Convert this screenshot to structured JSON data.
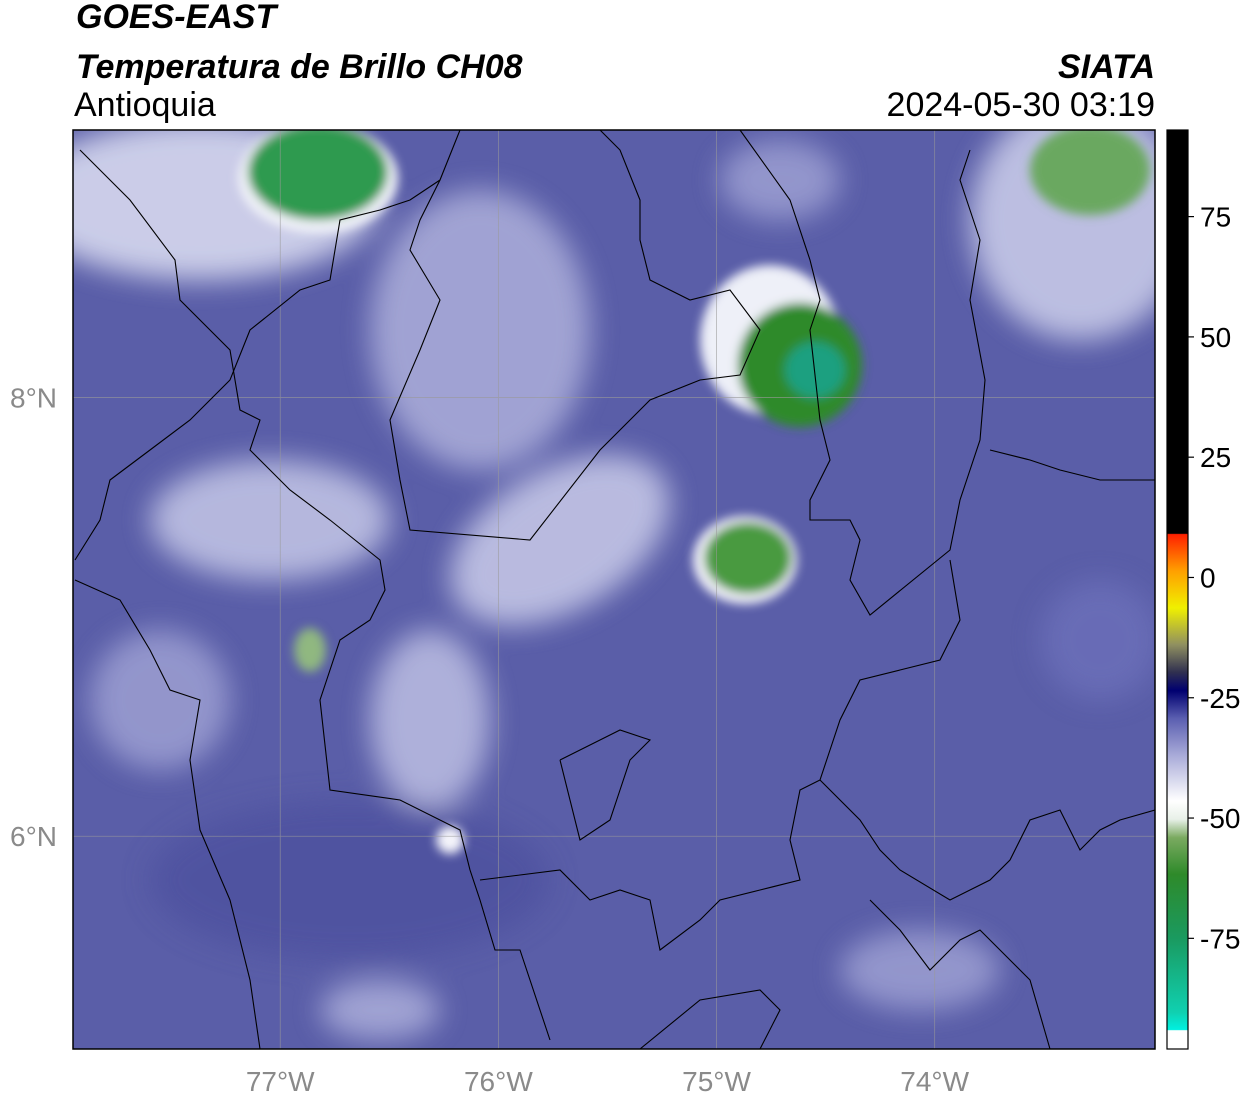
{
  "header": {
    "satellite": "GOES-EAST",
    "product": "Temperatura de Brillo CH08",
    "region": "Antioquia",
    "source": "SIATA",
    "datetime": "2024-05-30 03:19"
  },
  "map": {
    "xlim": [
      -77.95,
      -72.99
    ],
    "ylim": [
      5.03,
      9.22
    ],
    "xticks": [
      {
        "value": -77,
        "label": "77°W"
      },
      {
        "value": -76,
        "label": "76°W"
      },
      {
        "value": -75,
        "label": "75°W"
      },
      {
        "value": -74,
        "label": "74°W"
      }
    ],
    "yticks": [
      {
        "value": 8,
        "label": "8°N"
      },
      {
        "value": 6,
        "label": "6°N"
      }
    ]
  },
  "colorbar": {
    "range": [
      -98,
      93
    ],
    "ticks": [
      75,
      50,
      25,
      0,
      -25,
      -50,
      -75
    ]
  }
}
